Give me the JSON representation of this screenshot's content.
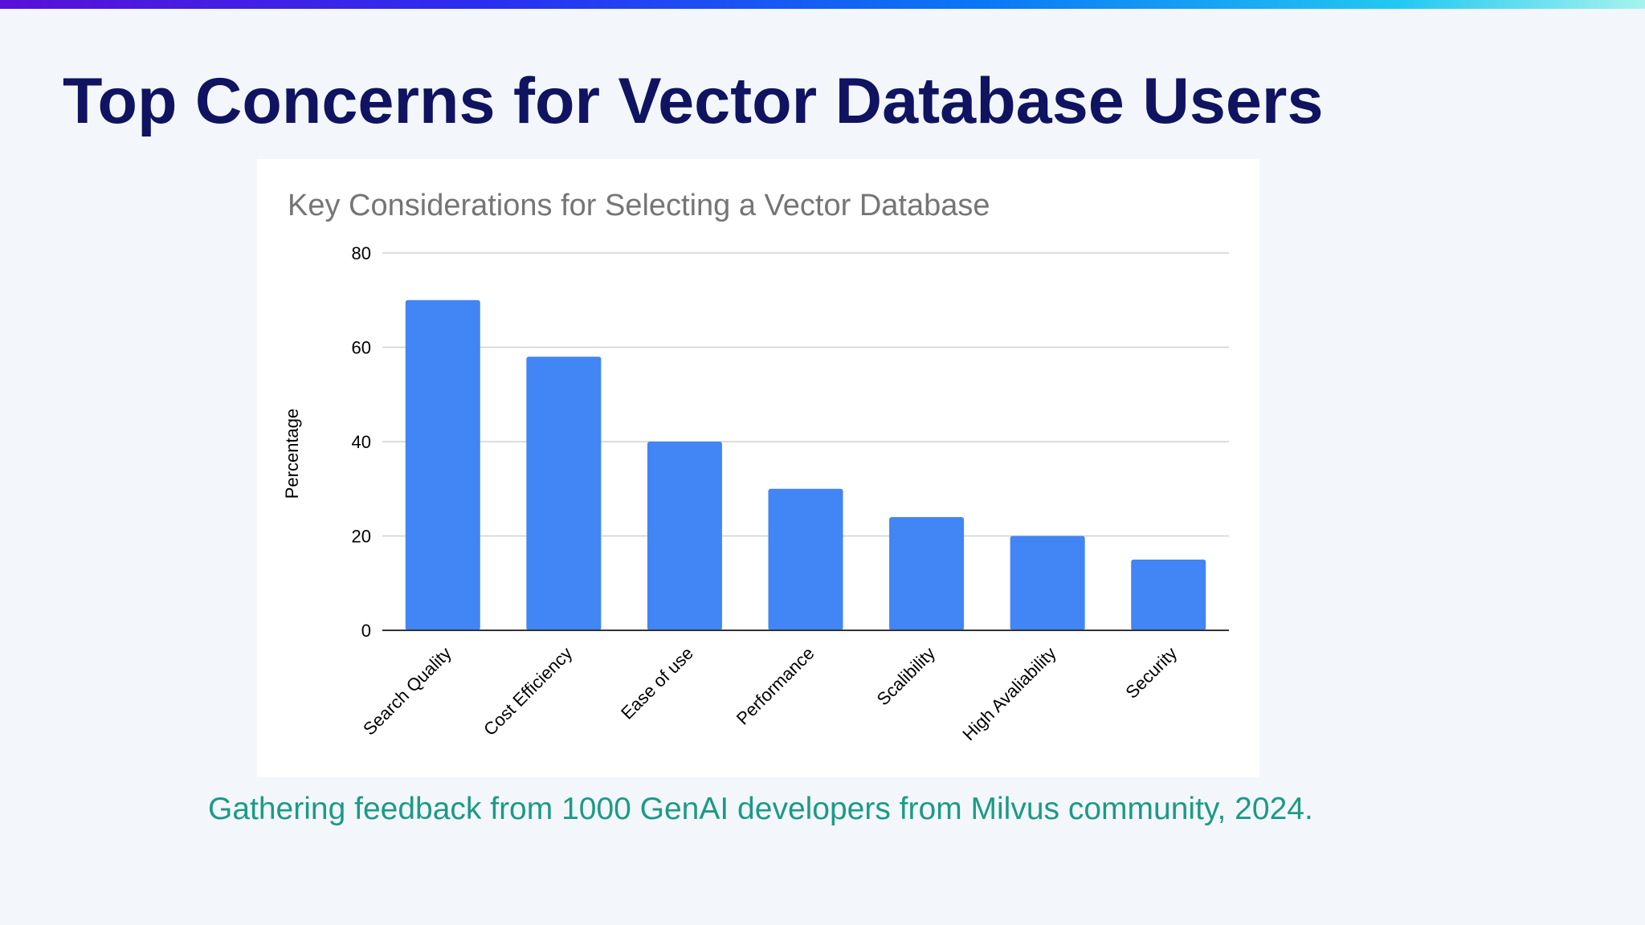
{
  "slide": {
    "title": "Top Concerns for Vector Database Users",
    "caption": "Gathering feedback from 1000 GenAI developers from Milvus community, 2024."
  },
  "colors": {
    "title": "#0f1360",
    "caption": "#1c9a86",
    "bar": "#4285f4",
    "chart_title": "#757575",
    "gridline": "#d0d0d0",
    "axis": "#333333"
  },
  "chart_data": {
    "type": "bar",
    "title": "Key Considerations for Selecting a Vector Database",
    "xlabel": "",
    "ylabel": "Percentage",
    "categories": [
      "Search Quality",
      "Cost Efficiency",
      "Ease of use",
      "Performance",
      "Scalibility",
      "High Avaliability",
      "Security"
    ],
    "values": [
      70,
      58,
      40,
      30,
      24,
      20,
      15
    ],
    "ylim": [
      0,
      80
    ],
    "yticks": [
      "0",
      "20",
      "40",
      "60",
      "80"
    ],
    "grid": true,
    "legend": "none"
  }
}
